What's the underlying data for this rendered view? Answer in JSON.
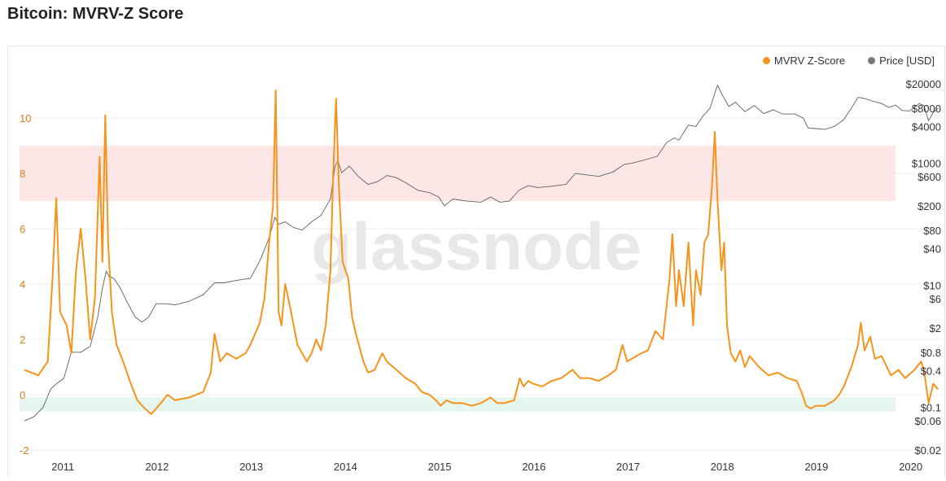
{
  "page": {
    "title": "Bitcoin: MVRV-Z Score"
  },
  "watermark": "glassnode",
  "colors": {
    "zscore": "#f7931a",
    "price": "#5f5f5f",
    "upper_band": "#fde6e6",
    "lower_band": "#e5f6ee",
    "left_axis_text": "#d8831a",
    "right_axis_text": "#333333",
    "grid": "#ececec"
  },
  "chart_data": {
    "type": "line",
    "title": "Bitcoin: MVRV-Z Score",
    "x_ticks": [
      "2011",
      "2012",
      "2013",
      "2014",
      "2015",
      "2016",
      "2017",
      "2018",
      "2019",
      "2020"
    ],
    "left_axis": {
      "ylim": [
        -2.2,
        12.2
      ],
      "ticks": [
        "-2",
        "0",
        "2",
        "4",
        "6",
        "8",
        "10"
      ]
    },
    "right_axis": {
      "scale": "log",
      "ticks": [
        "$0.02",
        "$0.06",
        "$0.1",
        "$0.4",
        "$0.8",
        "$2",
        "$6",
        "$10",
        "$40",
        "$80",
        "$200",
        "$600",
        "$1000",
        "$4000",
        "$8000",
        "$20000"
      ]
    },
    "bands": [
      {
        "name": "upper",
        "from": 7,
        "to": 9
      },
      {
        "name": "lower",
        "from": -0.1,
        "to": -0.6
      }
    ],
    "legend": {
      "placement": "top-right"
    },
    "series": [
      {
        "name": "MVRV Z-Score",
        "axis": "left",
        "points": [
          [
            2010.6,
            0.9
          ],
          [
            2010.75,
            0.7
          ],
          [
            2010.85,
            1.2
          ],
          [
            2010.9,
            4.2
          ],
          [
            2010.94,
            7.1
          ],
          [
            2010.98,
            3.0
          ],
          [
            2011.05,
            2.5
          ],
          [
            2011.1,
            1.5
          ],
          [
            2011.15,
            4.5
          ],
          [
            2011.2,
            6.0
          ],
          [
            2011.25,
            4.2
          ],
          [
            2011.3,
            2.0
          ],
          [
            2011.35,
            3.5
          ],
          [
            2011.4,
            8.6
          ],
          [
            2011.43,
            4.8
          ],
          [
            2011.46,
            10.1
          ],
          [
            2011.49,
            5.5
          ],
          [
            2011.53,
            3.0
          ],
          [
            2011.58,
            1.8
          ],
          [
            2011.65,
            1.2
          ],
          [
            2011.72,
            0.5
          ],
          [
            2011.8,
            -0.2
          ],
          [
            2011.88,
            -0.5
          ],
          [
            2011.95,
            -0.7
          ],
          [
            2012.0,
            -0.5
          ],
          [
            2012.05,
            -0.3
          ],
          [
            2012.12,
            0.0
          ],
          [
            2012.2,
            -0.2
          ],
          [
            2012.35,
            -0.1
          ],
          [
            2012.5,
            0.1
          ],
          [
            2012.58,
            0.8
          ],
          [
            2012.62,
            2.2
          ],
          [
            2012.68,
            1.2
          ],
          [
            2012.75,
            1.5
          ],
          [
            2012.85,
            1.3
          ],
          [
            2012.95,
            1.5
          ],
          [
            2013.0,
            1.8
          ],
          [
            2013.1,
            2.6
          ],
          [
            2013.15,
            3.5
          ],
          [
            2013.2,
            5.5
          ],
          [
            2013.24,
            6.8
          ],
          [
            2013.27,
            11.0
          ],
          [
            2013.3,
            3.0
          ],
          [
            2013.33,
            2.5
          ],
          [
            2013.37,
            4.0
          ],
          [
            2013.42,
            3.2
          ],
          [
            2013.5,
            1.8
          ],
          [
            2013.6,
            1.2
          ],
          [
            2013.65,
            1.5
          ],
          [
            2013.7,
            2.0
          ],
          [
            2013.75,
            1.6
          ],
          [
            2013.8,
            2.5
          ],
          [
            2013.85,
            4.5
          ],
          [
            2013.88,
            8.0
          ],
          [
            2013.91,
            10.7
          ],
          [
            2013.94,
            7.5
          ],
          [
            2013.98,
            4.8
          ],
          [
            2014.04,
            4.2
          ],
          [
            2014.08,
            2.8
          ],
          [
            2014.12,
            2.2
          ],
          [
            2014.2,
            1.2
          ],
          [
            2014.25,
            0.8
          ],
          [
            2014.32,
            0.9
          ],
          [
            2014.4,
            1.5
          ],
          [
            2014.45,
            1.2
          ],
          [
            2014.55,
            0.9
          ],
          [
            2014.65,
            0.6
          ],
          [
            2014.75,
            0.4
          ],
          [
            2014.82,
            0.1
          ],
          [
            2014.9,
            0.0
          ],
          [
            2014.97,
            -0.2
          ],
          [
            2015.02,
            -0.4
          ],
          [
            2015.08,
            -0.2
          ],
          [
            2015.15,
            -0.3
          ],
          [
            2015.25,
            -0.3
          ],
          [
            2015.35,
            -0.4
          ],
          [
            2015.45,
            -0.3
          ],
          [
            2015.5,
            -0.2
          ],
          [
            2015.55,
            -0.1
          ],
          [
            2015.62,
            -0.3
          ],
          [
            2015.7,
            -0.3
          ],
          [
            2015.8,
            -0.2
          ],
          [
            2015.86,
            0.6
          ],
          [
            2015.9,
            0.3
          ],
          [
            2015.95,
            0.5
          ],
          [
            2016.0,
            0.4
          ],
          [
            2016.1,
            0.3
          ],
          [
            2016.2,
            0.5
          ],
          [
            2016.3,
            0.6
          ],
          [
            2016.42,
            0.9
          ],
          [
            2016.5,
            0.6
          ],
          [
            2016.6,
            0.6
          ],
          [
            2016.7,
            0.5
          ],
          [
            2016.8,
            0.7
          ],
          [
            2016.88,
            0.9
          ],
          [
            2016.95,
            1.8
          ],
          [
            2017.0,
            1.2
          ],
          [
            2017.05,
            1.3
          ],
          [
            2017.15,
            1.5
          ],
          [
            2017.22,
            1.6
          ],
          [
            2017.3,
            2.3
          ],
          [
            2017.38,
            2.0
          ],
          [
            2017.45,
            4.2
          ],
          [
            2017.48,
            5.8
          ],
          [
            2017.52,
            3.2
          ],
          [
            2017.55,
            4.5
          ],
          [
            2017.6,
            3.2
          ],
          [
            2017.65,
            5.5
          ],
          [
            2017.7,
            2.5
          ],
          [
            2017.73,
            4.5
          ],
          [
            2017.78,
            3.6
          ],
          [
            2017.82,
            5.5
          ],
          [
            2017.86,
            5.8
          ],
          [
            2017.9,
            7.5
          ],
          [
            2017.93,
            9.5
          ],
          [
            2017.96,
            7.0
          ],
          [
            2018.0,
            4.5
          ],
          [
            2018.03,
            5.5
          ],
          [
            2018.06,
            2.5
          ],
          [
            2018.1,
            1.5
          ],
          [
            2018.15,
            1.2
          ],
          [
            2018.2,
            1.6
          ],
          [
            2018.25,
            1.0
          ],
          [
            2018.3,
            1.4
          ],
          [
            2018.4,
            1.0
          ],
          [
            2018.5,
            0.7
          ],
          [
            2018.6,
            0.8
          ],
          [
            2018.7,
            0.6
          ],
          [
            2018.8,
            0.5
          ],
          [
            2018.85,
            0.1
          ],
          [
            2018.9,
            -0.4
          ],
          [
            2018.95,
            -0.5
          ],
          [
            2019.0,
            -0.4
          ],
          [
            2019.1,
            -0.4
          ],
          [
            2019.2,
            -0.2
          ],
          [
            2019.25,
            0.0
          ],
          [
            2019.3,
            0.3
          ],
          [
            2019.38,
            1.0
          ],
          [
            2019.45,
            1.8
          ],
          [
            2019.48,
            2.6
          ],
          [
            2019.52,
            1.6
          ],
          [
            2019.58,
            2.1
          ],
          [
            2019.63,
            1.3
          ],
          [
            2019.7,
            1.4
          ],
          [
            2019.8,
            0.7
          ],
          [
            2019.88,
            0.9
          ],
          [
            2019.95,
            0.6
          ],
          [
            2020.05,
            0.9
          ],
          [
            2020.12,
            1.2
          ],
          [
            2020.15,
            0.9
          ],
          [
            2020.2,
            -0.3
          ],
          [
            2020.25,
            0.4
          ],
          [
            2020.3,
            0.2
          ]
        ]
      },
      {
        "name": "Price [USD]",
        "axis": "right",
        "points": [
          [
            2010.6,
            0.06
          ],
          [
            2010.7,
            0.07
          ],
          [
            2010.8,
            0.1
          ],
          [
            2010.88,
            0.2
          ],
          [
            2010.95,
            0.25
          ],
          [
            2011.02,
            0.3
          ],
          [
            2011.1,
            0.8
          ],
          [
            2011.2,
            0.8
          ],
          [
            2011.3,
            1.0
          ],
          [
            2011.38,
            3
          ],
          [
            2011.43,
            9
          ],
          [
            2011.47,
            17
          ],
          [
            2011.5,
            14
          ],
          [
            2011.55,
            13
          ],
          [
            2011.62,
            9
          ],
          [
            2011.7,
            5
          ],
          [
            2011.78,
            3
          ],
          [
            2011.85,
            2.5
          ],
          [
            2011.92,
            3.0
          ],
          [
            2012.0,
            5
          ],
          [
            2012.1,
            5
          ],
          [
            2012.2,
            4.8
          ],
          [
            2012.35,
            5.5
          ],
          [
            2012.5,
            7
          ],
          [
            2012.62,
            11
          ],
          [
            2012.72,
            11
          ],
          [
            2012.85,
            12
          ],
          [
            2013.0,
            13
          ],
          [
            2013.1,
            25
          ],
          [
            2013.2,
            60
          ],
          [
            2013.26,
            130
          ],
          [
            2013.3,
            100
          ],
          [
            2013.37,
            110
          ],
          [
            2013.45,
            90
          ],
          [
            2013.55,
            80
          ],
          [
            2013.65,
            110
          ],
          [
            2013.75,
            140
          ],
          [
            2013.85,
            260
          ],
          [
            2013.9,
            900
          ],
          [
            2013.93,
            1100
          ],
          [
            2013.97,
            700
          ],
          [
            2014.05,
            900
          ],
          [
            2014.15,
            600
          ],
          [
            2014.25,
            450
          ],
          [
            2014.35,
            500
          ],
          [
            2014.45,
            630
          ],
          [
            2014.55,
            580
          ],
          [
            2014.65,
            480
          ],
          [
            2014.78,
            360
          ],
          [
            2014.9,
            330
          ],
          [
            2015.0,
            280
          ],
          [
            2015.06,
            200
          ],
          [
            2015.15,
            260
          ],
          [
            2015.3,
            240
          ],
          [
            2015.45,
            230
          ],
          [
            2015.55,
            280
          ],
          [
            2015.65,
            230
          ],
          [
            2015.75,
            240
          ],
          [
            2015.85,
            360
          ],
          [
            2015.95,
            430
          ],
          [
            2016.05,
            400
          ],
          [
            2016.2,
            420
          ],
          [
            2016.35,
            450
          ],
          [
            2016.45,
            680
          ],
          [
            2016.55,
            650
          ],
          [
            2016.7,
            610
          ],
          [
            2016.85,
            720
          ],
          [
            2016.97,
            960
          ],
          [
            2017.05,
            1000
          ],
          [
            2017.2,
            1150
          ],
          [
            2017.32,
            1300
          ],
          [
            2017.42,
            2200
          ],
          [
            2017.5,
            2600
          ],
          [
            2017.55,
            2400
          ],
          [
            2017.65,
            4200
          ],
          [
            2017.73,
            4000
          ],
          [
            2017.8,
            5800
          ],
          [
            2017.88,
            8000
          ],
          [
            2017.93,
            14000
          ],
          [
            2017.96,
            19000
          ],
          [
            2018.0,
            14000
          ],
          [
            2018.08,
            8500
          ],
          [
            2018.15,
            10000
          ],
          [
            2018.25,
            7000
          ],
          [
            2018.35,
            8800
          ],
          [
            2018.45,
            6500
          ],
          [
            2018.55,
            7500
          ],
          [
            2018.65,
            6400
          ],
          [
            2018.78,
            6400
          ],
          [
            2018.87,
            5500
          ],
          [
            2018.92,
            3800
          ],
          [
            2019.0,
            3700
          ],
          [
            2019.1,
            3600
          ],
          [
            2019.2,
            4000
          ],
          [
            2019.3,
            5200
          ],
          [
            2019.38,
            8000
          ],
          [
            2019.45,
            12000
          ],
          [
            2019.52,
            11500
          ],
          [
            2019.6,
            10500
          ],
          [
            2019.7,
            9500
          ],
          [
            2019.78,
            8200
          ],
          [
            2019.85,
            9000
          ],
          [
            2019.92,
            7300
          ],
          [
            2020.0,
            7200
          ],
          [
            2020.1,
            9500
          ],
          [
            2020.15,
            8800
          ],
          [
            2020.2,
            5000
          ],
          [
            2020.25,
            6800
          ],
          [
            2020.3,
            8000
          ]
        ]
      }
    ]
  }
}
